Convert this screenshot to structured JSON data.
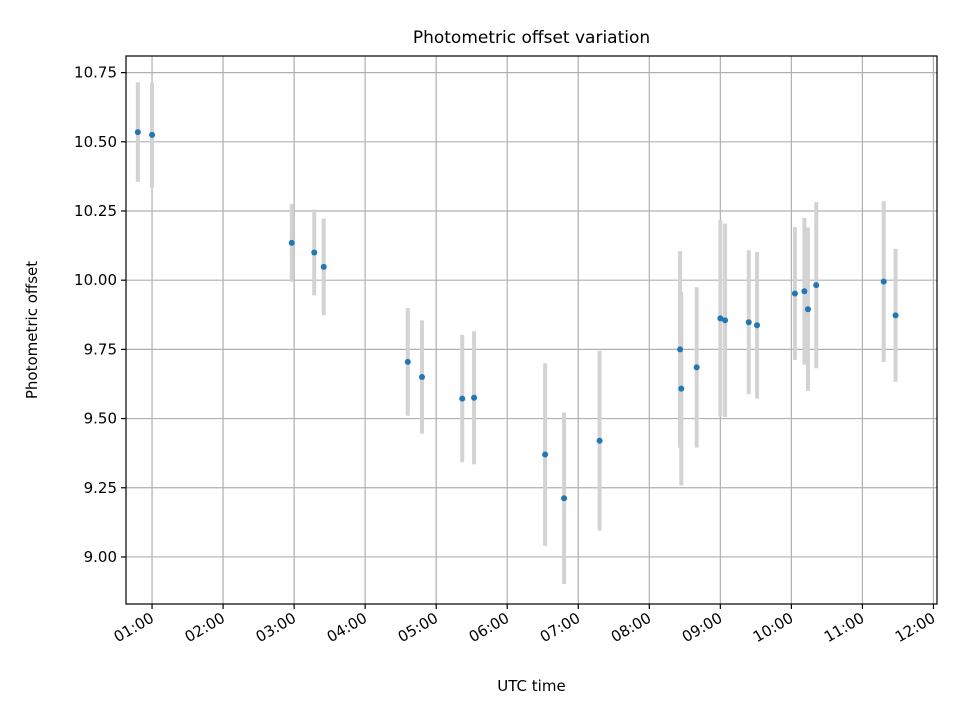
{
  "chart_data": {
    "type": "scatter",
    "title": "Photometric offset variation",
    "xlabel": "UTC time",
    "ylabel": "Photometric offset",
    "xlim": [
      "00:38",
      "12:03"
    ],
    "ylim": [
      8.83,
      10.81
    ],
    "x_ticks": [
      "01:00",
      "02:00",
      "03:00",
      "04:00",
      "05:00",
      "06:00",
      "07:00",
      "08:00",
      "09:00",
      "10:00",
      "11:00",
      "12:00"
    ],
    "y_ticks": [
      "9.00",
      "9.25",
      "9.50",
      "9.75",
      "10.00",
      "10.25",
      "10.50",
      "10.75"
    ],
    "grid": true,
    "colors": {
      "point": "#1f77b4",
      "errorbar": "#d3d3d3",
      "grid": "#b0b0b0"
    },
    "points": [
      {
        "x": "00:48",
        "y": 10.535,
        "yerr": 0.18
      },
      {
        "x": "01:00",
        "y": 10.525,
        "yerr": 0.19
      },
      {
        "x": "02:58",
        "y": 10.135,
        "yerr": 0.14
      },
      {
        "x": "03:17",
        "y": 10.1,
        "yerr": 0.155
      },
      {
        "x": "03:25",
        "y": 10.048,
        "yerr": 0.175
      },
      {
        "x": "04:36",
        "y": 9.705,
        "yerr": 0.195
      },
      {
        "x": "04:48",
        "y": 9.65,
        "yerr": 0.205
      },
      {
        "x": "05:22",
        "y": 9.572,
        "yerr": 0.23
      },
      {
        "x": "05:32",
        "y": 9.575,
        "yerr": 0.24
      },
      {
        "x": "06:32",
        "y": 9.37,
        "yerr": 0.33
      },
      {
        "x": "06:48",
        "y": 9.212,
        "yerr": 0.31
      },
      {
        "x": "07:18",
        "y": 9.42,
        "yerr": 0.325
      },
      {
        "x": "08:26",
        "y": 9.75,
        "yerr": 0.355
      },
      {
        "x": "08:27",
        "y": 9.608,
        "yerr": 0.35
      },
      {
        "x": "08:40",
        "y": 9.685,
        "yerr": 0.29
      },
      {
        "x": "09:00",
        "y": 9.862,
        "yerr": 0.355
      },
      {
        "x": "09:04",
        "y": 9.855,
        "yerr": 0.35
      },
      {
        "x": "09:24",
        "y": 9.848,
        "yerr": 0.26
      },
      {
        "x": "09:31",
        "y": 9.837,
        "yerr": 0.265
      },
      {
        "x": "10:03",
        "y": 9.952,
        "yerr": 0.24
      },
      {
        "x": "10:11",
        "y": 9.96,
        "yerr": 0.265
      },
      {
        "x": "10:14",
        "y": 9.895,
        "yerr": 0.295
      },
      {
        "x": "10:21",
        "y": 9.982,
        "yerr": 0.3
      },
      {
        "x": "11:18",
        "y": 9.995,
        "yerr": 0.29
      },
      {
        "x": "11:28",
        "y": 9.873,
        "yerr": 0.24
      }
    ]
  }
}
